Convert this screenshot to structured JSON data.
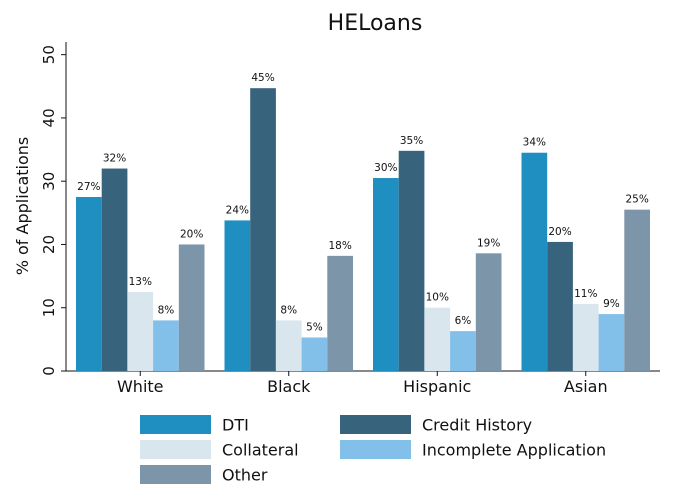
{
  "chart_data": {
    "type": "bar",
    "title": "HELoans",
    "ylabel": "% of Applications",
    "xlabel": "",
    "ylim": [
      0,
      52
    ],
    "yticks": [
      0,
      10,
      20,
      30,
      40,
      50
    ],
    "categories": [
      "White",
      "Black",
      "Hispanic",
      "Asian"
    ],
    "series": [
      {
        "name": "DTI",
        "color": "#1f8fc1",
        "values": [
          27.5,
          23.8,
          30.5,
          34.5
        ],
        "labels": [
          "27%",
          "24%",
          "30%",
          "34%"
        ]
      },
      {
        "name": "Credit History",
        "color": "#37637d",
        "values": [
          32.0,
          44.7,
          34.8,
          20.4
        ],
        "labels": [
          "32%",
          "45%",
          "35%",
          "20%"
        ]
      },
      {
        "name": "Collateral",
        "color": "#d9e6ee",
        "values": [
          12.5,
          8.0,
          10.0,
          10.6
        ],
        "labels": [
          "13%",
          "8%",
          "10%",
          "11%"
        ]
      },
      {
        "name": "Incomplete Application",
        "color": "#82c0ea",
        "values": [
          8.0,
          5.3,
          6.3,
          9.0
        ],
        "labels": [
          "8%",
          "5%",
          "6%",
          "9%"
        ]
      },
      {
        "name": "Other",
        "color": "#7d95a9",
        "values": [
          20.0,
          18.2,
          18.6,
          25.5
        ],
        "labels": [
          "20%",
          "18%",
          "19%",
          "25%"
        ]
      }
    ],
    "legend_position": "bottom"
  }
}
